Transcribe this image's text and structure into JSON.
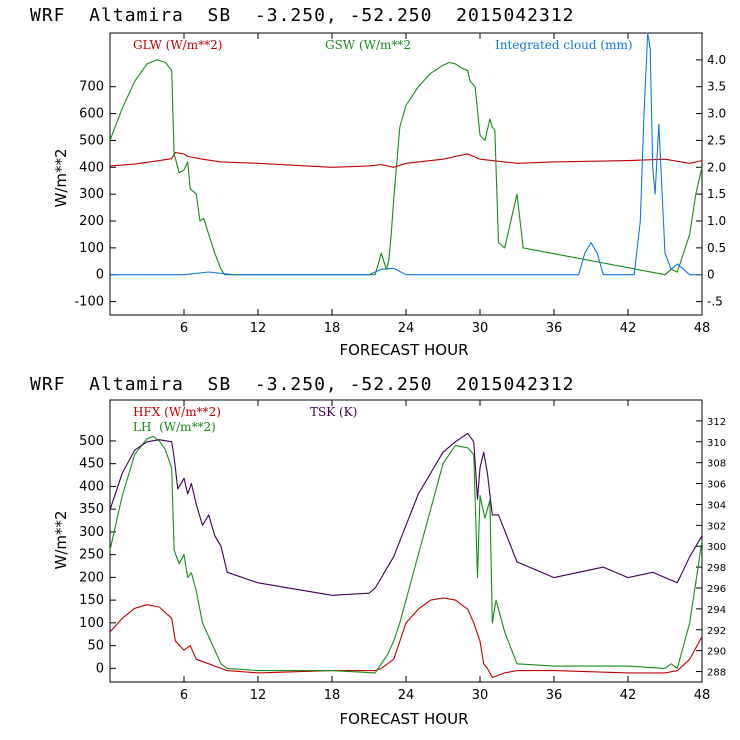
{
  "colors": {
    "red": "#c00000",
    "green": "#1a8a1a",
    "blue": "#1478dc",
    "purple": "#3c0050"
  },
  "chart_data": [
    {
      "type": "line",
      "title": "WRF  Altamira  SB  -3.250, -52.250  2015042312",
      "xlabel": "FORECAST HOUR",
      "ylabel": "W/m**2",
      "xlim": [
        0,
        48
      ],
      "ylim": [
        -150,
        900
      ],
      "y2lim": [
        -0.75,
        4.5
      ],
      "xticks": [
        6,
        12,
        18,
        24,
        30,
        36,
        42,
        48
      ],
      "yticks": [
        -100,
        0,
        100,
        200,
        300,
        400,
        500,
        600,
        700
      ],
      "y2ticks": [
        "-.5",
        "0",
        "0.5",
        "1.0",
        "1.5",
        "2.0",
        "2.5",
        "3.0",
        "3.5",
        "4.0"
      ],
      "y2tick_values": [
        -0.5,
        0,
        0.5,
        1.0,
        1.5,
        2.0,
        2.5,
        3.0,
        3.5,
        4.0
      ],
      "series": [
        {
          "name": "GLW (W/m**2)",
          "color": "#c00000",
          "axis": "left",
          "x": [
            0,
            2,
            4,
            5,
            5.3,
            6,
            6.3,
            7,
            7.5,
            9,
            12,
            18,
            21,
            22,
            23,
            24,
            27,
            28,
            29,
            30,
            31,
            33,
            36,
            42,
            45,
            47,
            48
          ],
          "y": [
            405,
            412,
            425,
            432,
            455,
            450,
            440,
            435,
            430,
            420,
            415,
            400,
            405,
            410,
            400,
            415,
            430,
            440,
            450,
            430,
            425,
            415,
            420,
            425,
            430,
            415,
            425
          ]
        },
        {
          "name": "GSW (W/m**2",
          "color": "#1a8a1a",
          "axis": "left",
          "x": [
            0,
            1,
            2,
            3,
            3.8,
            4.5,
            5,
            5.2,
            5.6,
            6,
            6.3,
            6.5,
            7,
            7.3,
            7.6,
            8,
            8.5,
            9,
            9.3,
            12,
            21.5,
            22,
            22.4,
            22.6,
            22.8,
            23,
            23.5,
            24,
            25,
            26,
            27,
            27.5,
            28,
            28.5,
            29,
            29.2,
            29.6,
            30,
            30.4,
            30.8,
            31,
            31.2,
            31.5,
            32,
            33,
            33.5,
            45,
            45.5,
            46,
            46.5,
            47,
            47.5,
            48
          ],
          "y": [
            500,
            620,
            720,
            785,
            800,
            790,
            760,
            450,
            380,
            390,
            420,
            320,
            300,
            200,
            210,
            150,
            80,
            20,
            0,
            0,
            0,
            80,
            20,
            50,
            150,
            280,
            550,
            630,
            700,
            750,
            780,
            790,
            785,
            770,
            760,
            720,
            700,
            520,
            500,
            580,
            550,
            540,
            120,
            100,
            300,
            100,
            0,
            20,
            10,
            80,
            150,
            300,
            400
          ]
        },
        {
          "name": "Integrated cloud (mm)",
          "color": "#1478dc",
          "axis": "right",
          "x": [
            0,
            6,
            8,
            10,
            21,
            22,
            23,
            24,
            38,
            38.5,
            39,
            39.5,
            40,
            42.5,
            43,
            43.3,
            43.6,
            43.8,
            44,
            44.2,
            44.5,
            45,
            45.5,
            46,
            46.5,
            47,
            48
          ],
          "y": [
            0.0,
            0.0,
            0.05,
            0.0,
            0.0,
            0.1,
            0.12,
            0.0,
            0.0,
            0.4,
            0.6,
            0.4,
            0.0,
            0.0,
            1.0,
            3.0,
            4.5,
            4.2,
            2.0,
            1.5,
            2.8,
            0.4,
            0.1,
            0.2,
            0.1,
            0.0,
            0.0
          ]
        }
      ]
    },
    {
      "type": "line",
      "title": "WRF  Altamira  SB  -3.250, -52.250  2015042312",
      "xlabel": "FORECAST HOUR",
      "ylabel": "W/m**2",
      "xlim": [
        0,
        48
      ],
      "ylim": [
        -30,
        590
      ],
      "y2lim": [
        287,
        314
      ],
      "xticks": [
        6,
        12,
        18,
        24,
        30,
        36,
        42,
        48
      ],
      "yticks": [
        0,
        50,
        100,
        150,
        200,
        250,
        300,
        350,
        400,
        450,
        500
      ],
      "y2ticks": [
        "288",
        "290",
        "292",
        "294",
        "296",
        "298",
        "300",
        "302",
        "304",
        "306",
        "308",
        "310",
        "312"
      ],
      "y2tick_values": [
        288,
        290,
        292,
        294,
        296,
        298,
        300,
        302,
        304,
        306,
        308,
        310,
        312
      ],
      "series": [
        {
          "name": "HFX (W/m**2)",
          "color": "#c00000",
          "axis": "left",
          "x": [
            0,
            1,
            2,
            3,
            4,
            5,
            5.3,
            6,
            6.5,
            7,
            8,
            9,
            9.5,
            12,
            18,
            21.5,
            22,
            23,
            24,
            25,
            26,
            27,
            28,
            29,
            29.5,
            30,
            30.3,
            30.6,
            31,
            32,
            33,
            36,
            42,
            45,
            46,
            47,
            48
          ],
          "y": [
            80,
            110,
            132,
            140,
            135,
            110,
            60,
            40,
            50,
            20,
            10,
            0,
            -5,
            -10,
            -5,
            -5,
            0,
            20,
            100,
            130,
            150,
            155,
            150,
            130,
            100,
            60,
            10,
            0,
            -20,
            -10,
            -5,
            -5,
            -10,
            -10,
            -5,
            20,
            70
          ]
        },
        {
          "name": "LH  (W/m**2)",
          "color": "#1a8a1a",
          "axis": "left",
          "x": [
            0,
            1,
            2,
            3,
            3.5,
            4,
            4.5,
            5,
            5.2,
            5.6,
            6,
            6.3,
            6.6,
            7,
            7.5,
            8,
            8.5,
            9,
            9.5,
            12,
            18,
            21.5,
            22,
            22.5,
            23,
            23.5,
            24,
            25,
            26,
            27,
            28,
            29,
            29.5,
            29.8,
            30,
            30.4,
            30.8,
            31,
            31.3,
            31.7,
            32,
            33,
            36,
            42,
            45,
            45.5,
            46,
            47,
            48
          ],
          "y": [
            260,
            380,
            470,
            505,
            510,
            500,
            480,
            440,
            260,
            230,
            250,
            200,
            210,
            170,
            100,
            70,
            40,
            10,
            0,
            -5,
            -5,
            -10,
            10,
            30,
            60,
            100,
            150,
            250,
            350,
            450,
            490,
            485,
            470,
            200,
            380,
            330,
            370,
            100,
            150,
            110,
            80,
            10,
            5,
            5,
            0,
            10,
            0,
            100,
            280
          ]
        },
        {
          "name": "TSK (K)",
          "color": "#3c0050",
          "axis": "right",
          "x": [
            0,
            1,
            2,
            3,
            4,
            5,
            5.2,
            5.5,
            6,
            6.3,
            6.6,
            7,
            7.5,
            8,
            8.5,
            9,
            9.5,
            12,
            18,
            21,
            21.5,
            22,
            23,
            24,
            25,
            26,
            27,
            28,
            29,
            29.5,
            29.8,
            30,
            30.3,
            30.6,
            31,
            31.5,
            32,
            33,
            36,
            38,
            40,
            42,
            44,
            45,
            46,
            47,
            48
          ],
          "y": [
            303.5,
            307,
            309.2,
            310.0,
            310.2,
            310.0,
            308.5,
            305.5,
            306.5,
            305,
            306,
            304,
            302,
            303,
            301,
            300,
            297.5,
            296.5,
            295.3,
            295.5,
            296,
            297,
            299,
            302,
            305,
            307,
            309,
            310,
            310.8,
            310,
            304.5,
            307.5,
            309,
            307,
            303,
            303,
            301.5,
            298.5,
            297,
            297.5,
            298,
            297,
            297.5,
            297,
            296.5,
            299,
            301
          ]
        }
      ]
    }
  ],
  "charts": [
    {
      "title": "WRF  Altamira  SB  -3.250, -52.250  2015042312",
      "xlabel": "FORECAST HOUR",
      "ylabel": "W/m**2",
      "legend": [
        {
          "label": "GLW (W/m**2)",
          "color": "#c00000"
        },
        {
          "label": "GSW (W/m**2",
          "color": "#1a8a1a"
        },
        {
          "label": "Integrated cloud (mm)",
          "color": "#1478dc"
        }
      ]
    },
    {
      "title": "WRF  Altamira  SB  -3.250, -52.250  2015042312",
      "xlabel": "FORECAST HOUR",
      "ylabel": "W/m**2",
      "legend": [
        {
          "label": "HFX (W/m**2)",
          "color": "#c00000"
        },
        {
          "label": "LH  (W/m**2)",
          "color": "#1a8a1a"
        },
        {
          "label": "TSK (K)",
          "color": "#3c0050"
        }
      ]
    }
  ]
}
